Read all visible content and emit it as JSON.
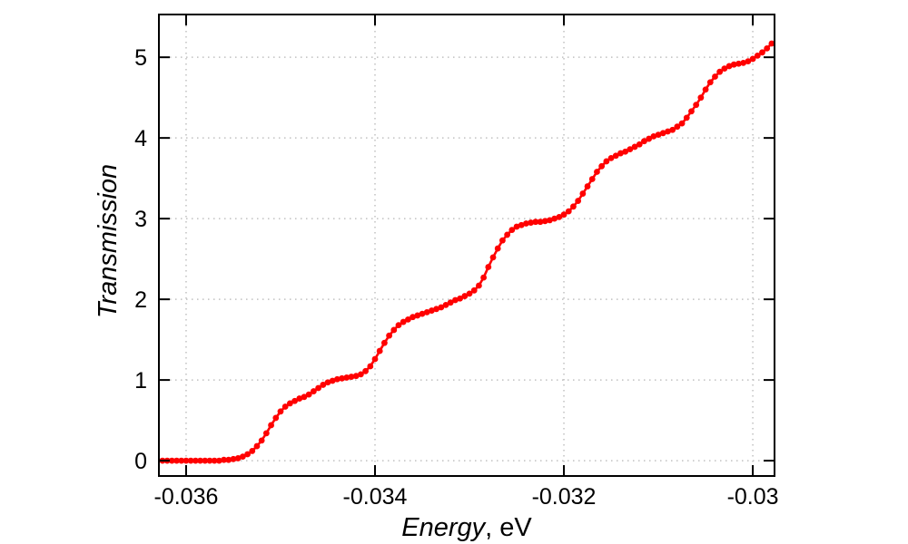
{
  "chart_data": {
    "type": "line",
    "style": "linespoints",
    "title": "",
    "xlabel_italic": "Energy",
    "xlabel_suffix": ", eV",
    "ylabel": "Transmission",
    "xlim": [
      -0.036288,
      -0.02977
    ],
    "ylim": [
      -0.19,
      5.53
    ],
    "grid": true,
    "legend": "none",
    "x_ticks": {
      "values": [
        -0.036,
        -0.034,
        -0.032,
        -0.03
      ],
      "labels": [
        "-0.036",
        "-0.034",
        "-0.032",
        "-0.03"
      ]
    },
    "y_ticks": {
      "values": [
        0,
        1,
        2,
        3,
        4,
        5
      ],
      "labels": [
        "0",
        "1",
        "2",
        "3",
        "4",
        "5"
      ]
    },
    "colors": {
      "series": "#ff0000",
      "border": "#000000",
      "grid": "#c0c0c0",
      "background": "#ffffff",
      "text": "#000000"
    },
    "series": [
      {
        "name": "transmission",
        "color": "#ff0000",
        "marker": "filled-circle",
        "x": [
          -0.03625,
          -0.0362,
          -0.03615,
          -0.0361,
          -0.03605,
          -0.036,
          -0.03595,
          -0.0359,
          -0.03585,
          -0.0358,
          -0.03575,
          -0.0357,
          -0.03565,
          -0.0356,
          -0.03555,
          -0.0355,
          -0.03545,
          -0.0354,
          -0.03535,
          -0.0353,
          -0.03525,
          -0.0352,
          -0.03515,
          -0.0351,
          -0.03505,
          -0.035,
          -0.03495,
          -0.0349,
          -0.03485,
          -0.0348,
          -0.03475,
          -0.0347,
          -0.03465,
          -0.0346,
          -0.03455,
          -0.0345,
          -0.03445,
          -0.0344,
          -0.03435,
          -0.0343,
          -0.03425,
          -0.0342,
          -0.03415,
          -0.0341,
          -0.03405,
          -0.034,
          -0.03395,
          -0.0339,
          -0.03385,
          -0.0338,
          -0.03375,
          -0.0337,
          -0.03365,
          -0.0336,
          -0.03355,
          -0.0335,
          -0.03345,
          -0.0334,
          -0.03335,
          -0.0333,
          -0.03325,
          -0.0332,
          -0.03315,
          -0.0331,
          -0.03305,
          -0.033,
          -0.03295,
          -0.0329,
          -0.03285,
          -0.0328,
          -0.03275,
          -0.0327,
          -0.03265,
          -0.0326,
          -0.03255,
          -0.0325,
          -0.03245,
          -0.0324,
          -0.03235,
          -0.0323,
          -0.03225,
          -0.0322,
          -0.03215,
          -0.0321,
          -0.03205,
          -0.032,
          -0.03195,
          -0.0319,
          -0.03185,
          -0.0318,
          -0.03175,
          -0.0317,
          -0.03165,
          -0.0316,
          -0.03155,
          -0.0315,
          -0.03145,
          -0.0314,
          -0.03135,
          -0.0313,
          -0.03125,
          -0.0312,
          -0.03115,
          -0.0311,
          -0.03105,
          -0.031,
          -0.03095,
          -0.0309,
          -0.03085,
          -0.0308,
          -0.03075,
          -0.0307,
          -0.03065,
          -0.0306,
          -0.03055,
          -0.0305,
          -0.03045,
          -0.0304,
          -0.03035,
          -0.0303,
          -0.03025,
          -0.0302,
          -0.03015,
          -0.0301,
          -0.03005,
          -0.03,
          -0.02995,
          -0.0299,
          -0.02985,
          -0.0298
        ],
        "y": [
          0.0,
          0.0,
          0.0,
          0.0,
          0.0,
          0.0,
          0.0,
          0.0,
          0.0,
          0.0,
          0.0,
          0.0,
          0.0,
          0.01,
          0.01,
          0.02,
          0.03,
          0.05,
          0.08,
          0.12,
          0.18,
          0.25,
          0.34,
          0.44,
          0.53,
          0.61,
          0.67,
          0.71,
          0.74,
          0.77,
          0.79,
          0.82,
          0.86,
          0.9,
          0.94,
          0.97,
          0.99,
          1.01,
          1.02,
          1.03,
          1.04,
          1.05,
          1.07,
          1.11,
          1.17,
          1.26,
          1.36,
          1.46,
          1.55,
          1.62,
          1.68,
          1.72,
          1.75,
          1.78,
          1.8,
          1.82,
          1.84,
          1.86,
          1.88,
          1.9,
          1.93,
          1.96,
          1.99,
          2.01,
          2.04,
          2.07,
          2.11,
          2.17,
          2.27,
          2.4,
          2.52,
          2.63,
          2.73,
          2.8,
          2.86,
          2.9,
          2.92,
          2.94,
          2.95,
          2.96,
          2.96,
          2.97,
          2.98,
          3.0,
          3.02,
          3.05,
          3.09,
          3.15,
          3.22,
          3.31,
          3.4,
          3.49,
          3.58,
          3.65,
          3.71,
          3.75,
          3.78,
          3.81,
          3.83,
          3.86,
          3.89,
          3.92,
          3.96,
          3.99,
          4.02,
          4.04,
          4.06,
          4.08,
          4.1,
          4.14,
          4.18,
          4.25,
          4.33,
          4.41,
          4.5,
          4.6,
          4.69,
          4.76,
          4.82,
          4.86,
          4.89,
          4.91,
          4.92,
          4.93,
          4.95,
          4.98,
          5.02,
          5.06,
          5.11,
          5.17
        ]
      }
    ]
  }
}
